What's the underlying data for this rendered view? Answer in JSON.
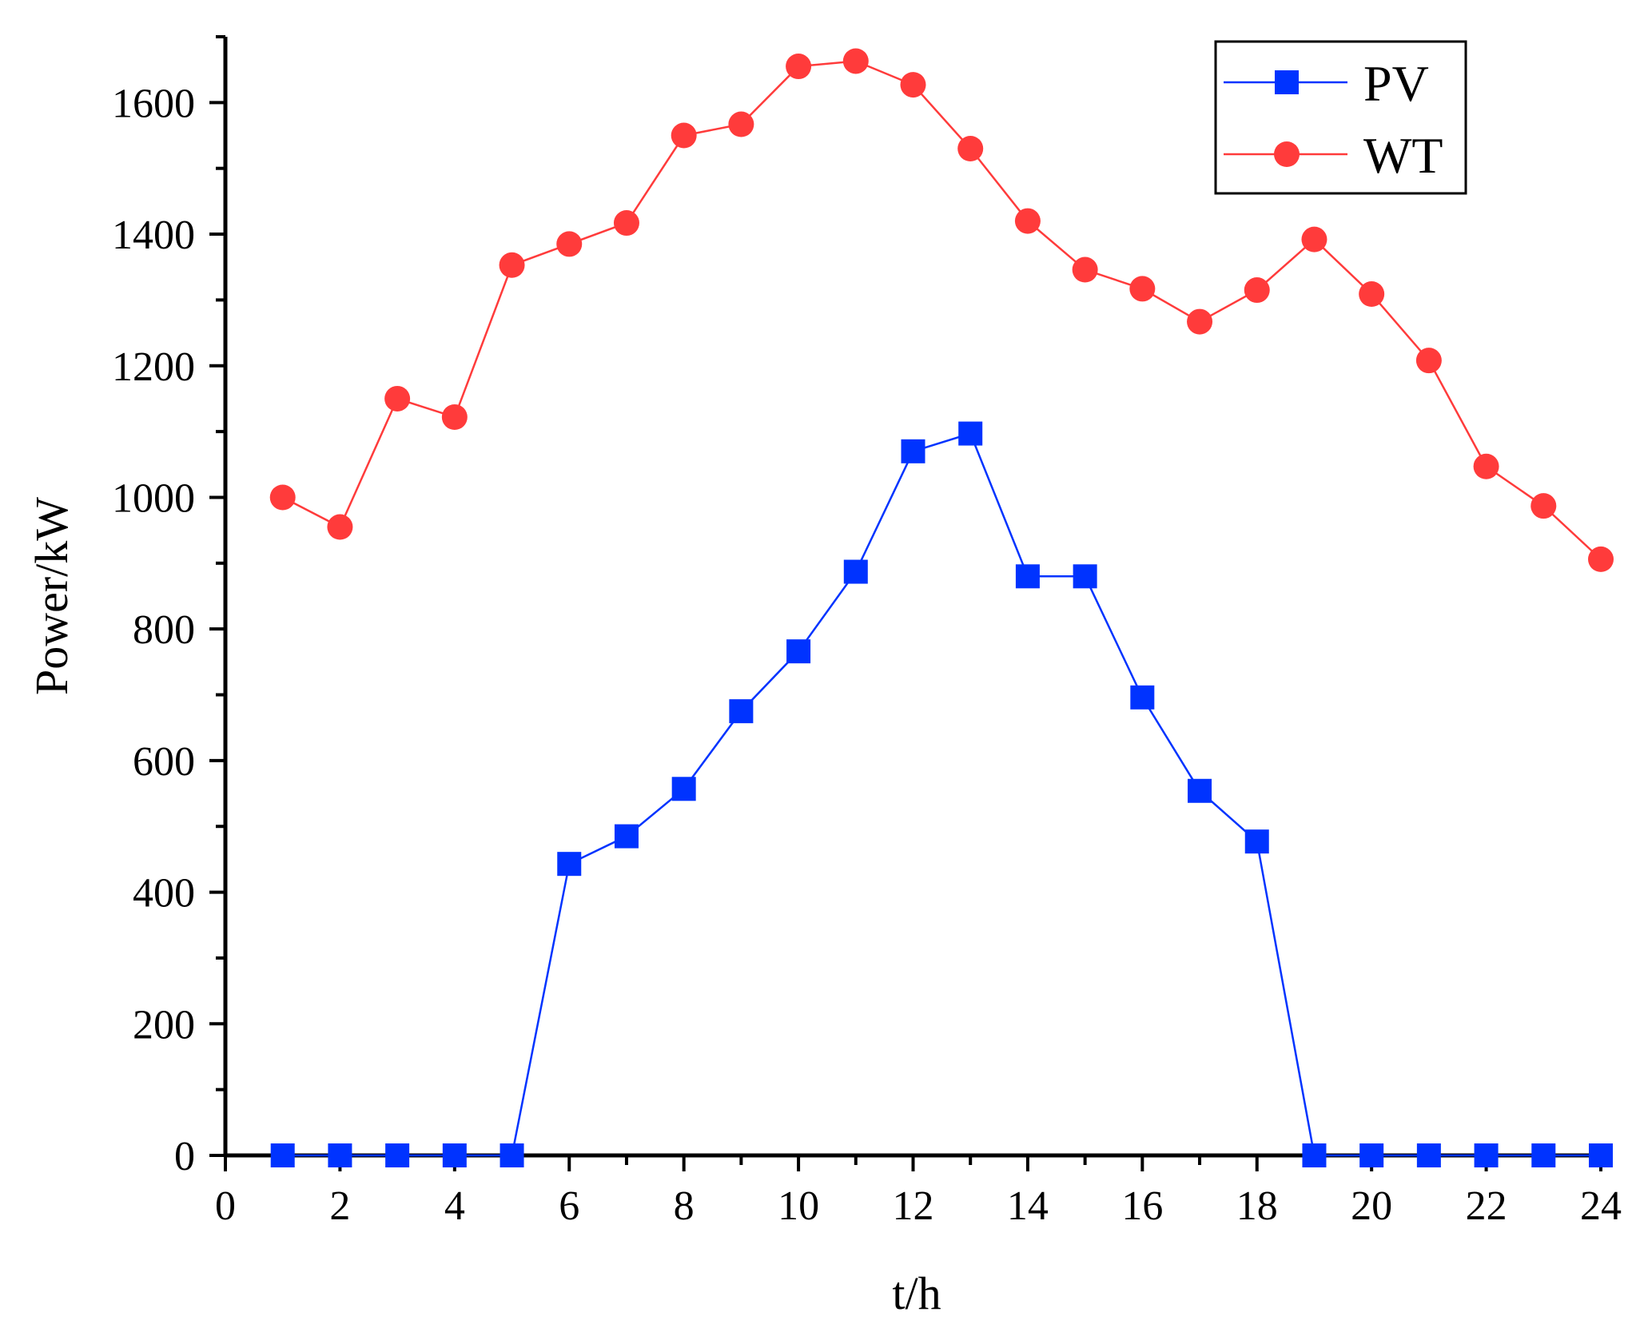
{
  "chart_data": {
    "type": "line",
    "title": "",
    "xlabel": "t/h",
    "ylabel": "Power/kW",
    "xlim": [
      0,
      24
    ],
    "ylim": [
      0,
      1700
    ],
    "x_ticks": [
      "0",
      "2",
      "4",
      "6",
      "8",
      "10",
      "12",
      "14",
      "16",
      "18",
      "20",
      "22",
      "24"
    ],
    "y_ticks": [
      "0",
      "200",
      "400",
      "600",
      "800",
      "1000",
      "1200",
      "1400",
      "1600"
    ],
    "x": [
      1,
      2,
      3,
      4,
      5,
      6,
      7,
      8,
      9,
      10,
      11,
      12,
      13,
      14,
      15,
      16,
      17,
      18,
      19,
      20,
      21,
      22,
      23,
      24
    ],
    "series": [
      {
        "name": "PV",
        "color": "#0033ff",
        "marker": "square",
        "values": [
          0,
          0,
          0,
          0,
          0,
          443,
          485,
          557,
          675,
          766,
          887,
          1070,
          1097,
          880,
          880,
          696,
          554,
          477,
          0,
          0,
          0,
          0,
          0,
          0
        ]
      },
      {
        "name": "WT",
        "color": "#ff3b3b",
        "marker": "circle",
        "values": [
          1000,
          955,
          1150,
          1122,
          1353,
          1385,
          1417,
          1550,
          1567,
          1655,
          1663,
          1627,
          1530,
          1420,
          1346,
          1317,
          1267,
          1315,
          1392,
          1309,
          1208,
          1047,
          987,
          906
        ]
      }
    ],
    "legend": {
      "position": "top-right",
      "entries": [
        "PV",
        "WT"
      ]
    },
    "grid": false
  }
}
